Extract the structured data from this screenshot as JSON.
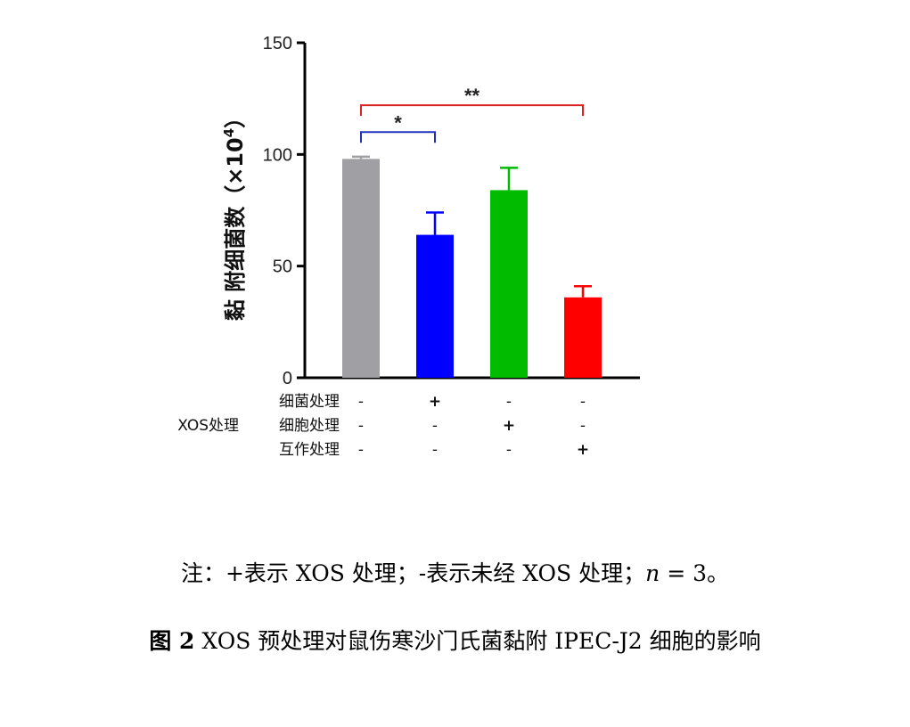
{
  "chart_data": {
    "type": "bar",
    "ylabel_main": "黏 附细菌数（",
    "ylabel_times": "×10",
    "ylabel_exp": "4",
    "ylabel_close": "）",
    "ylim": [
      0,
      150
    ],
    "yticks": [
      0,
      50,
      100,
      150
    ],
    "categories": [
      "group1",
      "group2",
      "group3",
      "group4"
    ],
    "values": [
      98,
      64,
      84,
      36
    ],
    "errors": [
      1,
      10,
      10,
      5
    ],
    "colors": [
      "#a0a0a4",
      "#0000ff",
      "#00bb00",
      "#ff0000"
    ],
    "treatment_group_label": "XOS处理",
    "treatment_rows": [
      {
        "label": "细菌处理",
        "marks": [
          "-",
          "+",
          "-",
          "-"
        ]
      },
      {
        "label": "细胞处理",
        "marks": [
          "-",
          "-",
          "+",
          "-"
        ]
      },
      {
        "label": "互作处理",
        "marks": [
          "-",
          "-",
          "-",
          "+"
        ]
      }
    ],
    "significance": [
      {
        "from": 0,
        "to": 1,
        "label": "*",
        "color": "#2233bb",
        "y": 110
      },
      {
        "from": 0,
        "to": 3,
        "label": "**",
        "color": "#dd2222",
        "y": 122
      }
    ]
  },
  "caption": {
    "note": "注：+表示 XOS 处理；-表示未经 XOS 处理；",
    "note_n": "n",
    "note_tail": " = 3。",
    "figure_label": "图 2",
    "figure_title": " XOS 预处理对鼠伤寒沙门氏菌黏附 IPEC-J2 细胞的影响"
  }
}
